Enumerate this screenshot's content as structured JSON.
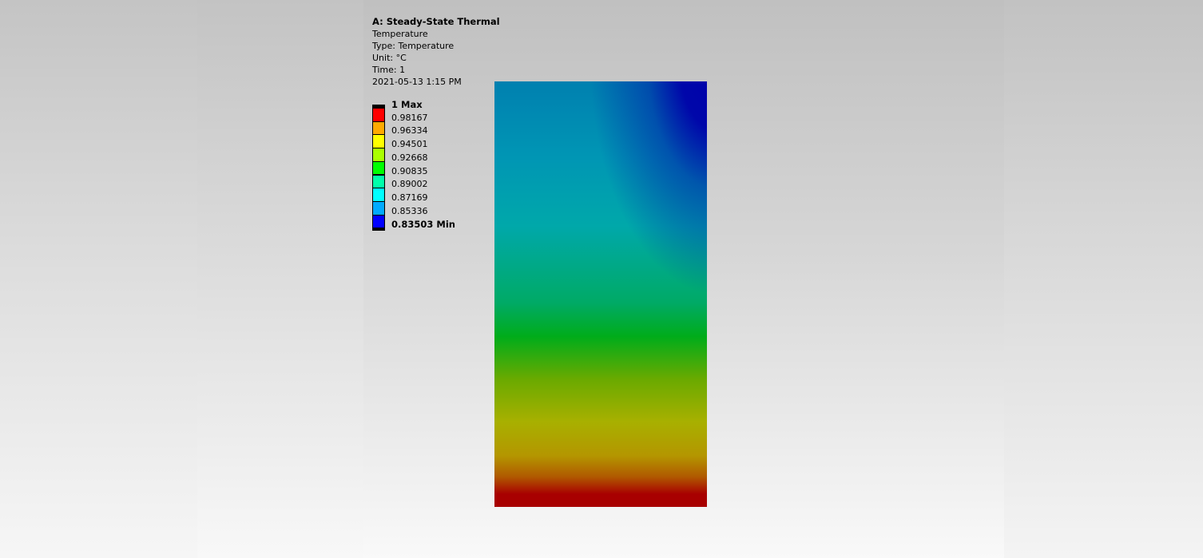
{
  "header": {
    "title": "A: Steady-State Thermal",
    "result_name": "Temperature",
    "type_line": "Type: Temperature",
    "unit_line": "Unit: °C",
    "time_line": "Time: 1",
    "date_line": "2021-05-13 1:15 PM"
  },
  "legend": {
    "max_label": "1 Max",
    "min_label": "0.83503 Min",
    "levels": [
      "0.98167",
      "0.96334",
      "0.94501",
      "0.92668",
      "0.90835",
      "0.89002",
      "0.87169",
      "0.85336"
    ],
    "band_colors": [
      "#ff0000",
      "#ffaa00",
      "#ffff00",
      "#aaff00",
      "#00ff00",
      "#00ffaa",
      "#00ffff",
      "#00aaff",
      "#0000ff"
    ]
  },
  "model": {
    "colors": {
      "hot": "#a80000",
      "warm": "#b4a000",
      "mid": "#00ac1a",
      "cool": "#00a8aa",
      "cold": "#0000aa"
    }
  }
}
